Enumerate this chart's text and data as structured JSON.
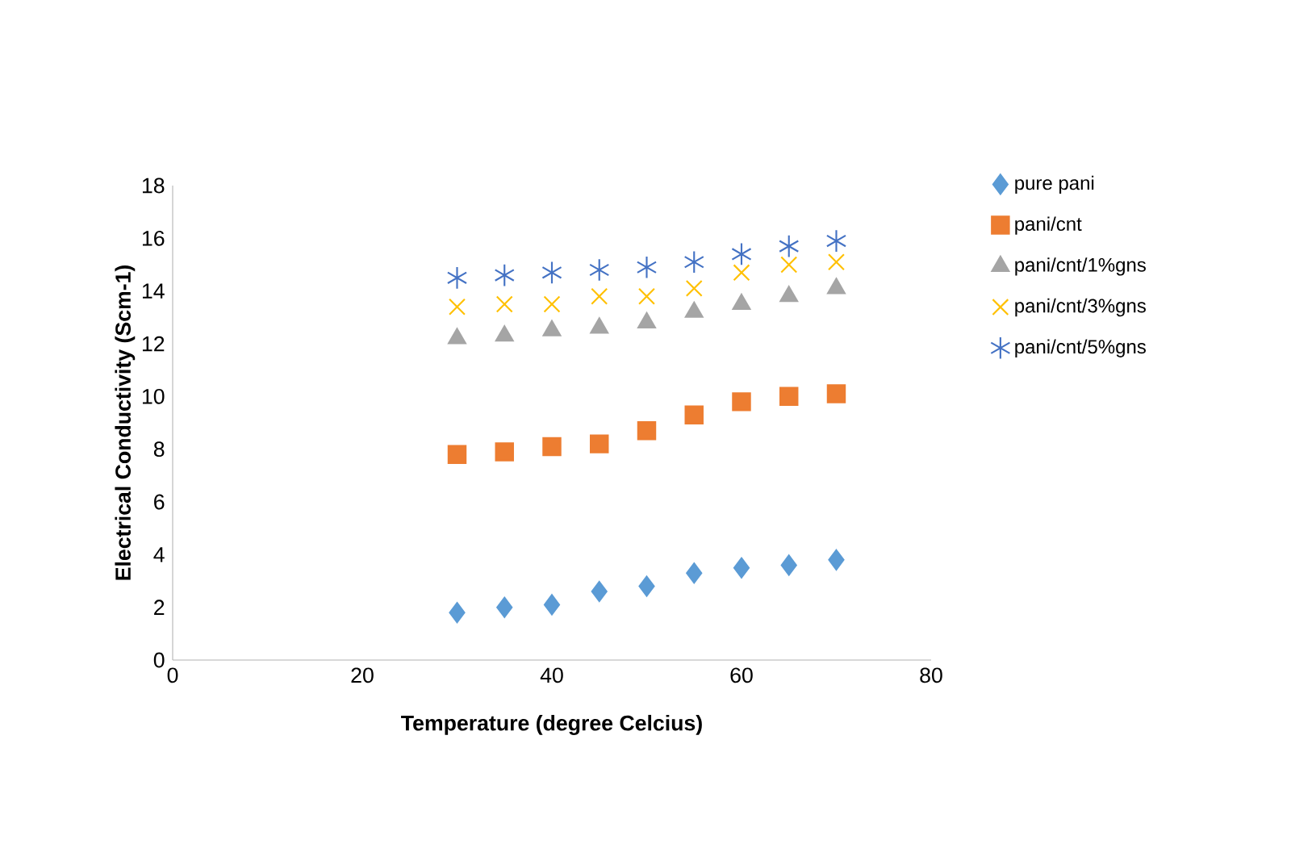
{
  "chart_data": {
    "type": "scatter",
    "xlabel": "Temperature (degree Celcius)",
    "ylabel": "Electrical Conductivity (Scm-1)",
    "x": [
      30,
      35,
      40,
      45,
      50,
      55,
      60,
      65,
      70
    ],
    "xlim": [
      0,
      80
    ],
    "xticks": [
      0,
      20,
      40,
      60,
      80
    ],
    "ylim": [
      0,
      18
    ],
    "yticks": [
      0,
      2,
      4,
      6,
      8,
      10,
      12,
      14,
      16,
      18
    ],
    "legend": "right",
    "grid": false,
    "series": [
      {
        "name": "pure pani",
        "color": "#5b9bd5",
        "marker": "diamond",
        "values": [
          1.8,
          2.0,
          2.1,
          2.6,
          2.8,
          3.3,
          3.5,
          3.6,
          3.8
        ]
      },
      {
        "name": "pani/cnt",
        "color": "#ed7d31",
        "marker": "square",
        "values": [
          7.8,
          7.9,
          8.1,
          8.2,
          8.7,
          9.3,
          9.8,
          10.0,
          10.1
        ]
      },
      {
        "name": "pani/cnt/1%gns",
        "color": "#a5a5a5",
        "marker": "triangle",
        "values": [
          12.2,
          12.3,
          12.5,
          12.6,
          12.8,
          13.2,
          13.5,
          13.8,
          14.1
        ]
      },
      {
        "name": "pani/cnt/3%gns",
        "color": "#ffc000",
        "marker": "cross",
        "values": [
          13.4,
          13.5,
          13.5,
          13.8,
          13.8,
          14.1,
          14.7,
          15.0,
          15.1
        ]
      },
      {
        "name": "pani/cnt/5%gns",
        "color": "#4472c4",
        "values": [
          14.5,
          14.6,
          14.7,
          14.8,
          14.9,
          15.1,
          15.4,
          15.7,
          15.9
        ]
      }
    ]
  }
}
